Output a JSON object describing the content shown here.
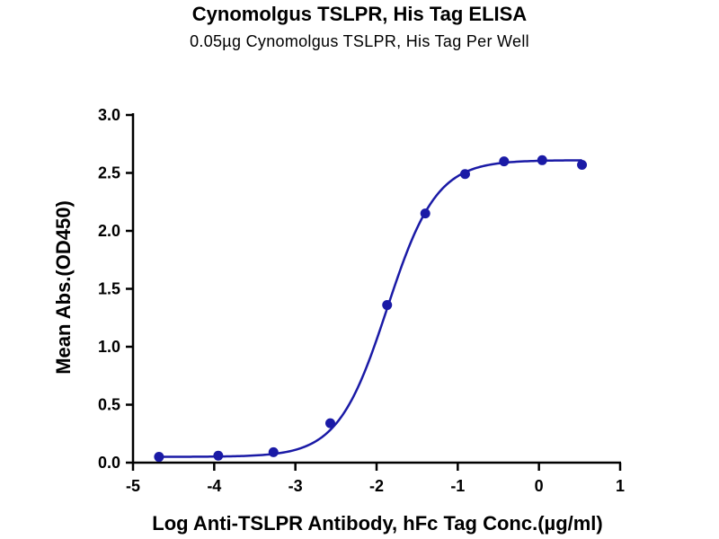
{
  "chart_data": {
    "type": "scatter",
    "title": "Cynomolgus TSLPR, His Tag ELISA",
    "subtitle": "0.05µg Cynomolgus TSLPR, His Tag Per Well",
    "xlabel": "Log Anti-TSLPR Antibody, hFc Tag Conc.(µg/ml)",
    "ylabel": "Mean Abs.(OD450)",
    "xlim": [
      -5,
      1
    ],
    "ylim": [
      0,
      3.0
    ],
    "x_ticks": [
      "-5",
      "-4",
      "-3",
      "-2",
      "-1",
      "0",
      "1"
    ],
    "y_ticks": [
      "0.0",
      "0.5",
      "1.0",
      "1.5",
      "2.0",
      "2.5",
      "3.0"
    ],
    "grid": false,
    "series": [
      {
        "x": [
          -4.68,
          -3.95,
          -3.27,
          -2.57,
          -1.87,
          -1.4,
          -0.91,
          -0.43,
          0.04,
          0.53
        ],
        "y": [
          0.05,
          0.06,
          0.09,
          0.34,
          1.36,
          2.15,
          2.49,
          2.6,
          2.61,
          2.57
        ],
        "fit": {
          "model": "4PL",
          "bottom": 0.05,
          "top": 2.61,
          "log_ec50": -1.87,
          "hill": 1.43
        },
        "color": "#1a1aa6"
      }
    ]
  }
}
